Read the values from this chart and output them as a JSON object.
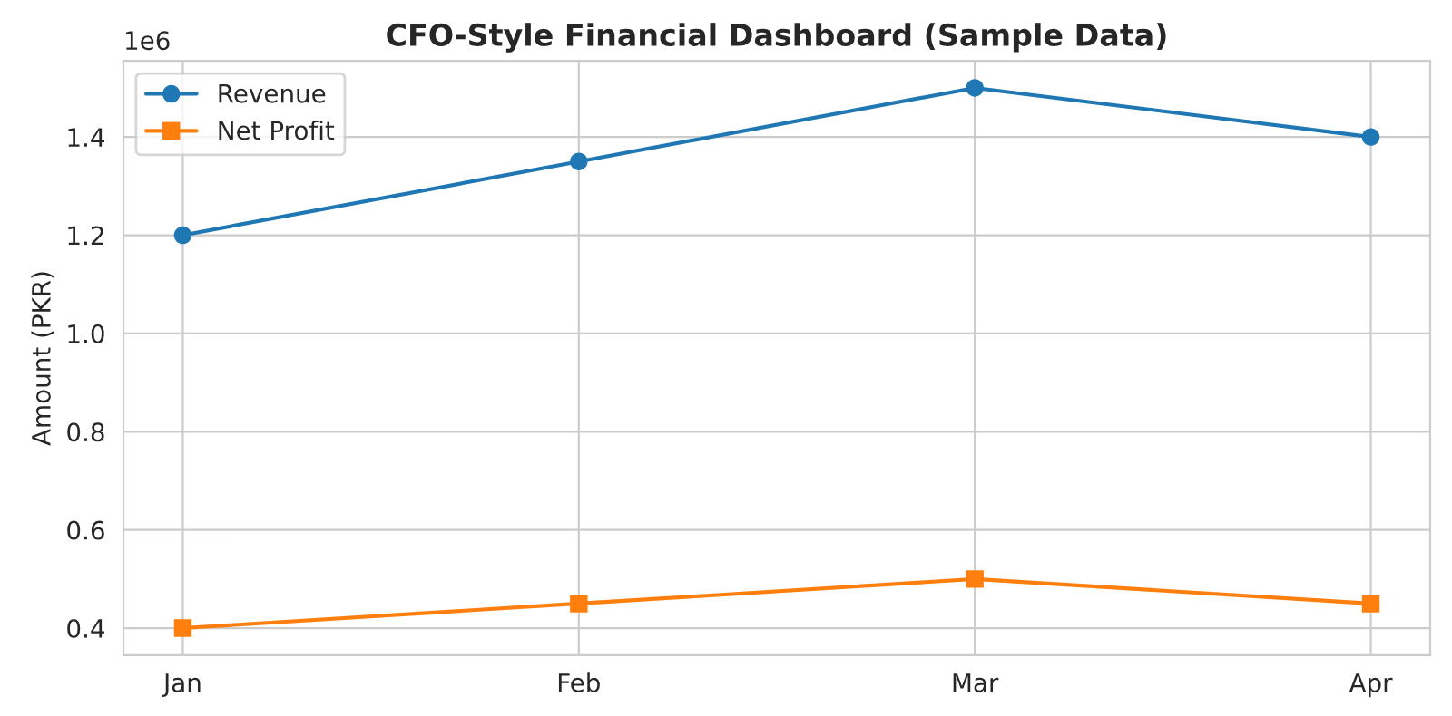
{
  "chart_data": {
    "type": "line",
    "title": "CFO-Style Financial Dashboard (Sample Data)",
    "ylabel": "Amount (PKR)",
    "categories": [
      "Jan",
      "Feb",
      "Mar",
      "Apr"
    ],
    "series": [
      {
        "name": "Revenue",
        "color": "#1f77b4",
        "marker": "circle",
        "values": [
          1.2,
          1.35,
          1.5,
          1.4
        ]
      },
      {
        "name": "Net Profit",
        "color": "#ff7f0e",
        "marker": "square",
        "values": [
          0.4,
          0.45,
          0.5,
          0.45
        ]
      }
    ],
    "ylim": [
      0.345,
      1.555
    ],
    "yticks": [
      {
        "value": 0.4,
        "label": "0.4"
      },
      {
        "value": 0.6,
        "label": "0.6"
      },
      {
        "value": 0.8,
        "label": "0.8"
      },
      {
        "value": 1.0,
        "label": "1.0"
      },
      {
        "value": 1.2,
        "label": "1.2"
      },
      {
        "value": 1.4,
        "label": "1.4"
      }
    ],
    "annotations": [
      "1e6"
    ],
    "grid": true,
    "legend": "top left",
    "line_style": "solid"
  }
}
